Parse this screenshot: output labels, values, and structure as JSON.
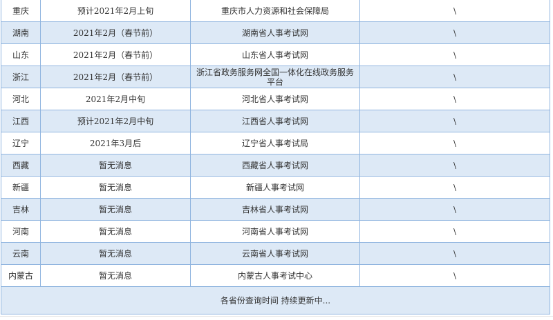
{
  "rows": [
    {
      "province": "重庆",
      "time": "预计2021年2月上旬",
      "site": "重庆市人力资源和社会保障局",
      "note": "\\"
    },
    {
      "province": "湖南",
      "time": "2021年2月（春节前）",
      "site": "湖南省人事考试网",
      "note": "\\"
    },
    {
      "province": "山东",
      "time": "2021年2月（春节前）",
      "site": "山东省人事考试网",
      "note": "\\"
    },
    {
      "province": "浙江",
      "time": "2021年2月（春节前）",
      "site": "浙江省政务服务网全国一体化在线政务服务平台",
      "note": "\\"
    },
    {
      "province": "河北",
      "time": "2021年2月中旬",
      "site": "河北省人事考试网",
      "note": "\\"
    },
    {
      "province": "江西",
      "time": "预计2021年2月中旬",
      "site": "江西省人事考试网",
      "note": "\\"
    },
    {
      "province": "辽宁",
      "time": "2021年3月后",
      "site": "辽宁省人事考试局",
      "note": "\\"
    },
    {
      "province": "西藏",
      "time": "暂无消息",
      "site": "西藏省人事考试网",
      "note": "\\"
    },
    {
      "province": "新疆",
      "time": "暂无消息",
      "site": "新疆人事考试网",
      "note": "\\"
    },
    {
      "province": "吉林",
      "time": "暂无消息",
      "site": "吉林省人事考试网",
      "note": "\\"
    },
    {
      "province": "河南",
      "time": "暂无消息",
      "site": "河南省人事考试网",
      "note": "\\"
    },
    {
      "province": "云南",
      "time": "暂无消息",
      "site": "云南省人事考试网",
      "note": "\\"
    },
    {
      "province": "内蒙古",
      "time": "暂无消息",
      "site": "内蒙古人事考试中心",
      "note": "\\"
    }
  ],
  "footer": "各省份查询时间  持续更新中..."
}
